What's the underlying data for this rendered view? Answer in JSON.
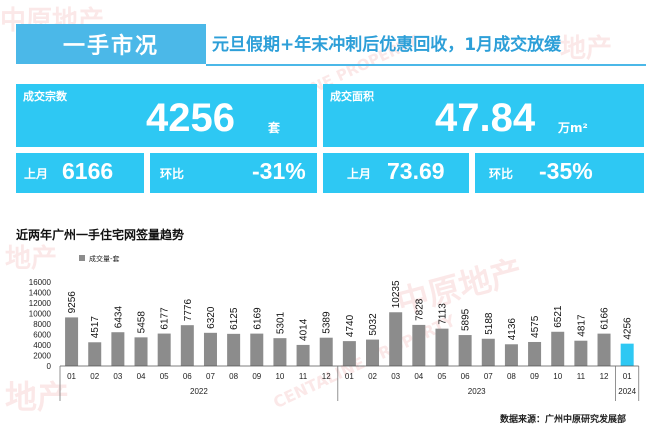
{
  "watermark": {
    "brand": "中原地产",
    "brand_short": "地产",
    "brand_en": "CENTALINE PROPERTY"
  },
  "header": {
    "title": "一手市况",
    "subtitle": "元旦假期+年末冲刺后优惠回收，1月成交放缓"
  },
  "stats": {
    "deals": {
      "label": "成交宗数",
      "value": "4256",
      "unit": "套",
      "last_month_label": "上月",
      "last_month_value": "6166",
      "mom_label": "环比",
      "mom_value": "-31%"
    },
    "area": {
      "label": "成交面积",
      "value": "47.84",
      "unit": "万m²",
      "last_month_label": "上月",
      "last_month_value": "73.69",
      "mom_label": "环比",
      "mom_value": "-35%"
    }
  },
  "chart_title": "近两年广州一手住宅网签量趋势",
  "source": "数据来源：广州中原研究发展部",
  "colors": {
    "accent": "#2ec8f3",
    "title_blue": "#4bb8e8",
    "subtitle_blue": "#2d9fd8",
    "bar_gray": "#8c8c8c",
    "bar_highlight": "#2ec8f3"
  },
  "chart_data": {
    "type": "bar",
    "title": "近两年广州一手住宅网签量趋势",
    "categories": [
      "01",
      "02",
      "03",
      "04",
      "05",
      "06",
      "07",
      "08",
      "09",
      "10",
      "11",
      "12",
      "01",
      "02",
      "03",
      "04",
      "05",
      "06",
      "07",
      "08",
      "09",
      "10",
      "11",
      "12",
      "01"
    ],
    "year_groups": [
      {
        "year": "2022",
        "start": 0,
        "end": 11
      },
      {
        "year": "2023",
        "start": 12,
        "end": 23
      },
      {
        "year": "2024",
        "start": 24,
        "end": 24
      }
    ],
    "series": [
      {
        "name": "成交量-套",
        "values": [
          9256,
          4517,
          6434,
          5458,
          6177,
          7776,
          6320,
          6125,
          6169,
          5301,
          4014,
          5389,
          4740,
          5032,
          10235,
          7828,
          7113,
          5895,
          5188,
          4136,
          4575,
          6521,
          4817,
          6166,
          4256
        ]
      }
    ],
    "highlight_index": 24,
    "ylim": [
      0,
      16000
    ],
    "yticks": [
      0,
      2000,
      4000,
      6000,
      8000,
      10000,
      12000,
      14000,
      16000
    ],
    "grid": false,
    "legend": "top-left"
  }
}
